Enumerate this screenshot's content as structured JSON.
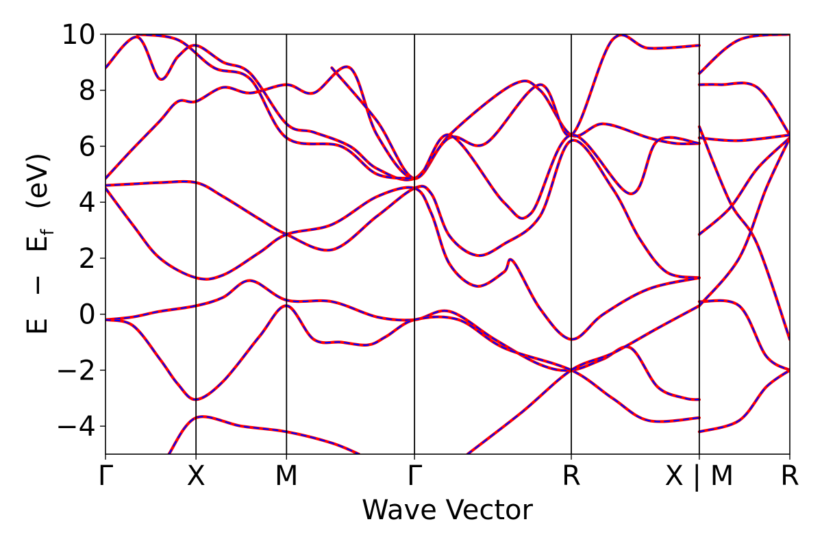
{
  "chart_data": {
    "type": "line",
    "title": "",
    "xlabel": "Wave Vector",
    "ylabel": {
      "E": "E",
      "minus": "−",
      "Ef_base": "E",
      "Ef_sub": "f",
      "unit": "(eV)"
    },
    "ylim": [
      -5,
      10
    ],
    "yticks": [
      -4,
      -2,
      0,
      2,
      4,
      6,
      8,
      10
    ],
    "ytick_labels": [
      "−4",
      "−2",
      "0",
      "2",
      "4",
      "6",
      "8",
      "10"
    ],
    "kpath": [
      {
        "label": "Γ",
        "k": 0.0
      },
      {
        "label": "X",
        "k": 1.0
      },
      {
        "label": "M",
        "k": 2.0
      },
      {
        "label": "Γ",
        "k": 3.414
      },
      {
        "label": "R",
        "k": 5.146
      },
      {
        "label": "X",
        "k": 6.56
      },
      {
        "label": "M",
        "k": 6.56
      },
      {
        "label": "R",
        "k": 7.56
      }
    ],
    "tick_text": [
      "Γ",
      "X",
      "M",
      "Γ",
      "R",
      "X | M",
      "R"
    ],
    "grid": false,
    "colors": {
      "red": "#ff0000",
      "blue": "#0000ff",
      "axes": "#000000"
    },
    "series": [
      {
        "values": [
          [
            0,
            4.85
          ],
          [
            0.3,
            5.9
          ],
          [
            0.6,
            6.9
          ],
          [
            0.8,
            7.6
          ],
          [
            1.0,
            7.6
          ],
          [
            1.3,
            8.1
          ],
          [
            1.6,
            7.9
          ],
          [
            2.0,
            8.2
          ],
          [
            2.3,
            7.9
          ],
          [
            2.7,
            8.8
          ],
          [
            3.0,
            6.4
          ],
          [
            3.414,
            4.85
          ],
          [
            3.8,
            6.4
          ],
          [
            4.5,
            8.2
          ],
          [
            4.8,
            8.0
          ],
          [
            5.146,
            6.4
          ],
          [
            5.5,
            6.8
          ],
          [
            6.0,
            6.3
          ],
          [
            6.3,
            6.1
          ],
          [
            6.56,
            6.1
          ]
        ]
      },
      {
        "values": [
          [
            0,
            4.6
          ],
          [
            0.3,
            4.65
          ],
          [
            0.6,
            4.7
          ],
          [
            1.0,
            4.7
          ],
          [
            1.3,
            4.2
          ],
          [
            1.7,
            3.4
          ],
          [
            2.0,
            2.85
          ],
          [
            2.5,
            2.3
          ],
          [
            3.0,
            3.5
          ],
          [
            3.414,
            4.5
          ],
          [
            3.6,
            4.3
          ],
          [
            3.8,
            2.8
          ],
          [
            4.1,
            2.1
          ],
          [
            4.4,
            2.5
          ],
          [
            4.8,
            3.5
          ],
          [
            5.146,
            6.2
          ],
          [
            5.6,
            4.5
          ],
          [
            5.9,
            2.7
          ],
          [
            6.2,
            1.5
          ],
          [
            6.56,
            1.3
          ]
        ]
      },
      {
        "values": [
          [
            0,
            4.5
          ],
          [
            0.3,
            3.2
          ],
          [
            0.6,
            2.0
          ],
          [
            1.0,
            1.3
          ],
          [
            1.3,
            1.4
          ],
          [
            1.7,
            2.2
          ],
          [
            2.0,
            2.85
          ],
          [
            2.5,
            3.2
          ],
          [
            3.0,
            4.2
          ],
          [
            3.414,
            4.5
          ],
          [
            3.6,
            3.6
          ],
          [
            3.8,
            1.8
          ],
          [
            4.1,
            1.0
          ],
          [
            4.4,
            1.5
          ],
          [
            4.5,
            1.9
          ],
          [
            4.8,
            0.2
          ],
          [
            5.146,
            -0.9
          ],
          [
            5.5,
            0.0
          ],
          [
            6.0,
            0.9
          ],
          [
            6.56,
            1.3
          ]
        ]
      },
      {
        "values": [
          [
            0,
            -0.2
          ],
          [
            0.3,
            -0.1
          ],
          [
            0.6,
            0.1
          ],
          [
            1.0,
            0.3
          ],
          [
            1.3,
            0.6
          ],
          [
            1.6,
            1.2
          ],
          [
            2.0,
            0.5
          ],
          [
            2.5,
            0.45
          ],
          [
            3.0,
            -0.1
          ],
          [
            3.414,
            -0.2
          ],
          [
            3.8,
            0.1
          ],
          [
            4.3,
            -0.9
          ],
          [
            4.8,
            -1.8
          ],
          [
            5.146,
            -2.0
          ],
          [
            5.5,
            -1.6
          ],
          [
            5.8,
            -1.2
          ],
          [
            6.1,
            -2.6
          ],
          [
            6.4,
            -3.0
          ],
          [
            6.56,
            -3.05
          ]
        ]
      },
      {
        "values": [
          [
            0,
            -0.2
          ],
          [
            0.3,
            -0.4
          ],
          [
            0.6,
            -1.6
          ],
          [
            0.8,
            -2.5
          ],
          [
            1.0,
            -3.05
          ],
          [
            1.3,
            -2.4
          ],
          [
            1.7,
            -0.8
          ],
          [
            2.0,
            0.3
          ],
          [
            2.3,
            -0.9
          ],
          [
            2.6,
            -1.0
          ],
          [
            2.9,
            -1.1
          ],
          [
            3.1,
            -0.8
          ],
          [
            3.414,
            -0.2
          ],
          [
            3.9,
            -0.2
          ],
          [
            4.4,
            -1.2
          ],
          [
            5.146,
            -2.0
          ],
          [
            5.6,
            -3.0
          ],
          [
            6.0,
            -3.8
          ],
          [
            6.56,
            -3.7
          ]
        ]
      },
      {
        "values": [
          [
            0.7,
            -5.0
          ],
          [
            1.0,
            -3.7
          ],
          [
            1.5,
            -4.0
          ],
          [
            2.0,
            -4.2
          ],
          [
            2.5,
            -4.6
          ],
          [
            2.8,
            -5.0
          ]
        ]
      },
      {
        "values": [
          [
            4.0,
            -5.0
          ],
          [
            4.6,
            -3.5
          ],
          [
            5.146,
            -2.0
          ],
          [
            5.6,
            -1.4
          ],
          [
            6.1,
            -0.5
          ],
          [
            6.56,
            0.3
          ]
        ]
      },
      {
        "values": [
          [
            0,
            8.8
          ],
          [
            0.35,
            9.9
          ],
          [
            0.6,
            8.4
          ],
          [
            0.8,
            9.2
          ],
          [
            1.0,
            9.6
          ],
          [
            1.3,
            9.0
          ],
          [
            1.6,
            8.6
          ],
          [
            2.0,
            6.8
          ],
          [
            2.3,
            6.5
          ],
          [
            2.7,
            6.0
          ],
          [
            3.0,
            5.2
          ],
          [
            3.414,
            4.85
          ],
          [
            3.8,
            6.3
          ],
          [
            4.2,
            6.1
          ],
          [
            4.8,
            8.2
          ],
          [
            5.146,
            6.4
          ],
          [
            5.6,
            9.8
          ],
          [
            6.0,
            9.5
          ],
          [
            6.56,
            9.6
          ]
        ]
      },
      {
        "values": [
          [
            2.5,
            8.8
          ],
          [
            3.0,
            6.9
          ],
          [
            3.414,
            4.85
          ],
          [
            3.8,
            6.4
          ],
          [
            4.4,
            4.0
          ],
          [
            4.7,
            3.6
          ],
          [
            5.146,
            6.4
          ],
          [
            5.8,
            4.3
          ],
          [
            6.1,
            6.2
          ],
          [
            6.56,
            6.1
          ]
        ]
      },
      {
        "values": [
          [
            0.35,
            10.0
          ],
          [
            0.8,
            9.8
          ],
          [
            1.2,
            8.8
          ],
          [
            1.6,
            8.4
          ],
          [
            2.0,
            6.3
          ],
          [
            2.6,
            6.0
          ],
          [
            3.0,
            5.0
          ],
          [
            3.414,
            4.85
          ]
        ]
      },
      {
        "values": [
          [
            6.56,
            8.2
          ],
          [
            6.8,
            8.2
          ],
          [
            7.2,
            8.1
          ],
          [
            7.56,
            6.4
          ]
        ]
      },
      {
        "values": [
          [
            6.56,
            6.3
          ],
          [
            7.0,
            6.2
          ],
          [
            7.56,
            6.4
          ]
        ]
      },
      {
        "values": [
          [
            6.56,
            6.7
          ],
          [
            6.9,
            4.0
          ],
          [
            7.2,
            2.5
          ],
          [
            7.56,
            -0.9
          ]
        ]
      },
      {
        "values": [
          [
            6.56,
            2.85
          ],
          [
            6.9,
            3.8
          ],
          [
            7.2,
            5.2
          ],
          [
            7.56,
            6.3
          ]
        ]
      },
      {
        "values": [
          [
            6.56,
            0.45
          ],
          [
            7.0,
            0.3
          ],
          [
            7.3,
            -1.5
          ],
          [
            7.56,
            -2.0
          ]
        ]
      },
      {
        "values": [
          [
            6.56,
            -4.2
          ],
          [
            7.0,
            -3.8
          ],
          [
            7.3,
            -2.6
          ],
          [
            7.56,
            -2.0
          ]
        ]
      },
      {
        "values": [
          [
            6.56,
            0.3
          ],
          [
            7.0,
            2.0
          ],
          [
            7.3,
            4.5
          ],
          [
            7.56,
            6.3
          ]
        ]
      },
      {
        "values": [
          [
            6.56,
            8.6
          ],
          [
            7.0,
            9.8
          ],
          [
            7.56,
            10.0
          ]
        ]
      }
    ]
  }
}
